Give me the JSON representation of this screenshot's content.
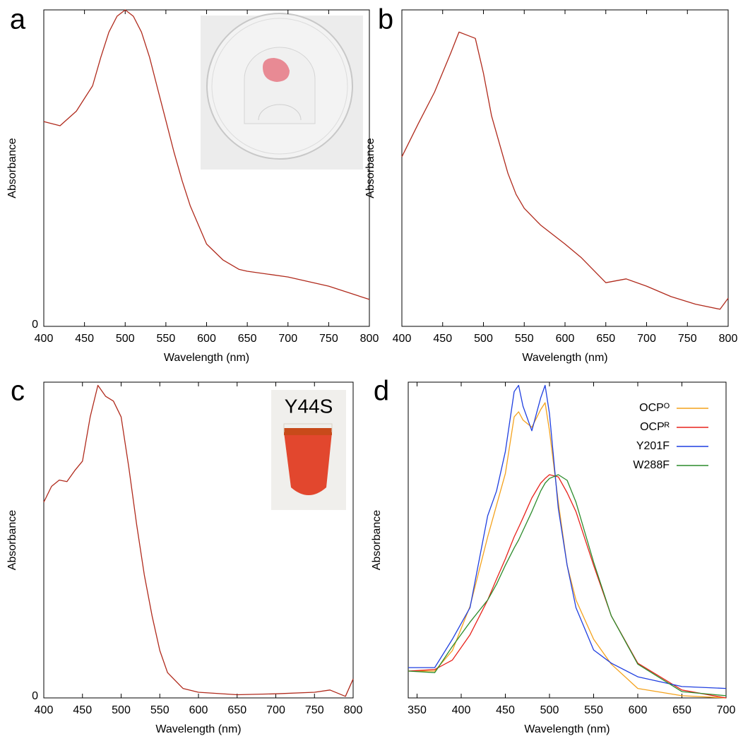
{
  "chart_data": [
    {
      "type": "line",
      "label": "a",
      "xlabel": "Wavelength (nm)",
      "ylabel": "Absorbance",
      "color": "#b02a1c",
      "x": [
        400,
        420,
        440,
        450,
        460,
        470,
        480,
        490,
        500,
        510,
        520,
        530,
        540,
        550,
        560,
        570,
        580,
        590,
        600,
        620,
        640,
        650,
        700,
        750,
        800
      ],
      "values": [
        0.647,
        0.634,
        0.68,
        0.72,
        0.76,
        0.85,
        0.93,
        0.98,
        1.0,
        0.98,
        0.93,
        0.85,
        0.75,
        0.65,
        0.55,
        0.46,
        0.38,
        0.32,
        0.26,
        0.21,
        0.18,
        0.174,
        0.156,
        0.127,
        0.085
      ],
      "xlim": [
        400,
        800
      ],
      "ylim": [
        0,
        1
      ],
      "xticks": [
        400,
        450,
        500,
        550,
        600,
        650,
        700,
        750,
        800
      ],
      "yticks": [
        0
      ]
    },
    {
      "type": "line",
      "label": "b",
      "xlabel": "Wavelength (nm)",
      "ylabel": "Absorbance",
      "color": "#b02a1c",
      "x": [
        400,
        420,
        440,
        460,
        470,
        480,
        490,
        500,
        510,
        520,
        530,
        540,
        550,
        570,
        600,
        620,
        650,
        675,
        700,
        730,
        760,
        790,
        800
      ],
      "values": [
        0.536,
        0.64,
        0.74,
        0.864,
        0.93,
        0.92,
        0.91,
        0.8,
        0.665,
        0.574,
        0.484,
        0.417,
        0.373,
        0.32,
        0.26,
        0.217,
        0.138,
        0.15,
        0.127,
        0.094,
        0.07,
        0.054,
        0.089
      ],
      "xlim": [
        400,
        800
      ],
      "ylim": [
        0,
        1
      ],
      "xticks": [
        400,
        450,
        500,
        550,
        600,
        650,
        700,
        750,
        800
      ]
    },
    {
      "type": "line",
      "label": "c",
      "xlabel": "Wavelength (nm)",
      "ylabel": "Absorbance",
      "color": "#b02a1c",
      "inset_label": "Y44S",
      "x": [
        400,
        410,
        420,
        430,
        440,
        450,
        460,
        470,
        480,
        490,
        500,
        510,
        520,
        530,
        540,
        550,
        560,
        580,
        600,
        650,
        700,
        750,
        770,
        790,
        800
      ],
      "values": [
        0.62,
        0.67,
        0.69,
        0.685,
        0.72,
        0.75,
        0.89,
        0.99,
        0.955,
        0.94,
        0.89,
        0.73,
        0.55,
        0.39,
        0.26,
        0.15,
        0.08,
        0.03,
        0.018,
        0.01,
        0.013,
        0.018,
        0.025,
        0.005,
        0.06
      ],
      "xlim": [
        400,
        800
      ],
      "ylim": [
        0,
        1
      ],
      "xticks": [
        400,
        450,
        500,
        550,
        600,
        650,
        700,
        750,
        800
      ],
      "yticks": [
        0
      ]
    },
    {
      "type": "line",
      "label": "d",
      "xlabel": "Wavelength (nm)",
      "ylabel": "Absorbance",
      "legend": "top right",
      "x": [
        340,
        370,
        390,
        410,
        430,
        440,
        450,
        460,
        465,
        470,
        480,
        490,
        495,
        500,
        510,
        520,
        530,
        550,
        570,
        600,
        650,
        700
      ],
      "series": [
        {
          "name": "OCPᴼ",
          "color": "#f4a21c",
          "values": [
            0.085,
            0.085,
            0.15,
            0.29,
            0.51,
            0.61,
            0.71,
            0.89,
            0.906,
            0.88,
            0.857,
            0.913,
            0.935,
            0.846,
            0.62,
            0.42,
            0.31,
            0.186,
            0.107,
            0.03,
            0.007,
            0.0
          ]
        },
        {
          "name": "OCPᴿ",
          "color": "#e8221b",
          "values": [
            0.085,
            0.09,
            0.12,
            0.2,
            0.31,
            0.376,
            0.44,
            0.51,
            0.54,
            0.57,
            0.633,
            0.68,
            0.695,
            0.707,
            0.7,
            0.65,
            0.59,
            0.42,
            0.26,
            0.11,
            0.025,
            0.0
          ]
        },
        {
          "name": "Y201F",
          "color": "#1f3fe0",
          "values": [
            0.096,
            0.096,
            0.186,
            0.286,
            0.577,
            0.655,
            0.78,
            0.97,
            0.99,
            0.924,
            0.846,
            0.95,
            0.99,
            0.9,
            0.6,
            0.42,
            0.286,
            0.152,
            0.11,
            0.067,
            0.036,
            0.03
          ]
        },
        {
          "name": "W288F",
          "color": "#2c8c2c",
          "values": [
            0.085,
            0.08,
            0.163,
            0.24,
            0.31,
            0.36,
            0.42,
            0.475,
            0.5,
            0.53,
            0.59,
            0.655,
            0.68,
            0.695,
            0.707,
            0.689,
            0.62,
            0.43,
            0.26,
            0.107,
            0.02,
            0.007
          ]
        }
      ],
      "xlim": [
        340,
        700
      ],
      "ylim": [
        0,
        1
      ],
      "xticks": [
        350,
        400,
        450,
        500,
        550,
        600,
        650,
        700
      ]
    }
  ]
}
